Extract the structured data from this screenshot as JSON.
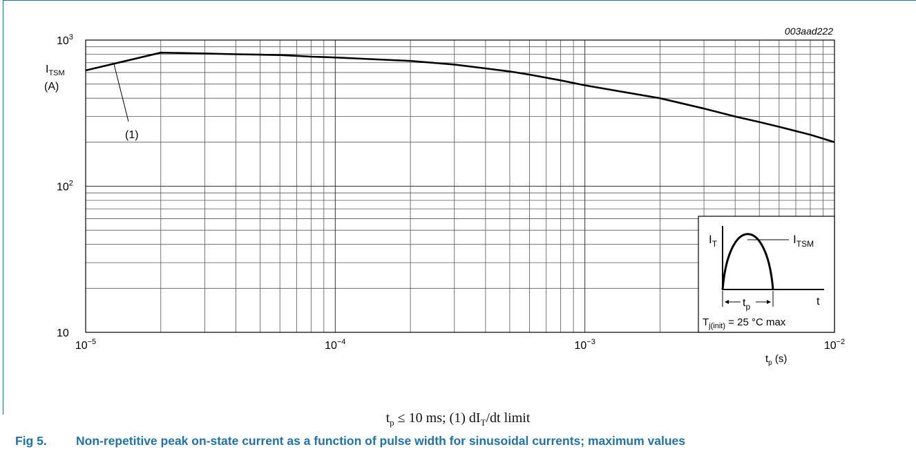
{
  "chart_data": {
    "type": "line",
    "figure_id": "003aad222",
    "y_label_main": "I",
    "y_label_sub": "TSM",
    "y_unit": "(A)",
    "x_label_main": "t",
    "x_label_sub": "p",
    "x_unit": " (s)",
    "x_scale": "log",
    "y_scale": "log",
    "xlim": [
      1e-05,
      0.01
    ],
    "ylim": [
      10,
      1000
    ],
    "grid": true,
    "x_ticks": [
      {
        "base": "10",
        "exp": "−5",
        "value": 1e-05
      },
      {
        "base": "10",
        "exp": "−4",
        "value": 0.0001
      },
      {
        "base": "10",
        "exp": "−3",
        "value": 0.001
      },
      {
        "base": "10",
        "exp": "−2",
        "value": 0.01
      }
    ],
    "y_ticks": [
      {
        "base": "10",
        "exp": "",
        "value": 10
      },
      {
        "base": "10",
        "exp": "2",
        "value": 100
      },
      {
        "base": "10",
        "exp": "3",
        "value": 1000
      }
    ],
    "series": [
      {
        "name": "(1)",
        "x": [
          1e-05,
          2e-05,
          3e-05,
          4e-05,
          5e-05,
          6e-05,
          7e-05,
          8e-05,
          9e-05,
          0.0001,
          0.0002,
          0.0003,
          0.0004,
          0.0005,
          0.0006,
          0.0008,
          0.001,
          0.002,
          0.003,
          0.004,
          0.005,
          0.006,
          0.008,
          0.01
        ],
        "y": [
          620,
          820,
          810,
          800,
          795,
          790,
          780,
          770,
          765,
          760,
          720,
          680,
          640,
          610,
          580,
          530,
          490,
          400,
          340,
          300,
          275,
          255,
          225,
          200
        ]
      }
    ],
    "annotation": {
      "label": "(1)",
      "x": 1.3e-05,
      "y": 680
    },
    "inset": {
      "label_it_main": "I",
      "label_it_sub": "T",
      "label_itsm_main": "I",
      "label_itsm_sub": "TSM",
      "label_t": "t",
      "label_tp_main": "t",
      "label_tp_sub": "p",
      "label_tj_main": "T",
      "label_tj_sub": "j(init)",
      "label_tj_rest": " = 25 °C max"
    }
  },
  "note": {
    "tp_main": "t",
    "tp_sub": "p",
    "text1": " ≤ 10 ms;    (1) dI",
    "it_sub": "T",
    "text2": "/dt limit"
  },
  "caption": {
    "fig": "Fig 5.",
    "text": "Non-repetitive peak on-state current as a function of pulse width for sinusoidal currents; maximum values"
  }
}
